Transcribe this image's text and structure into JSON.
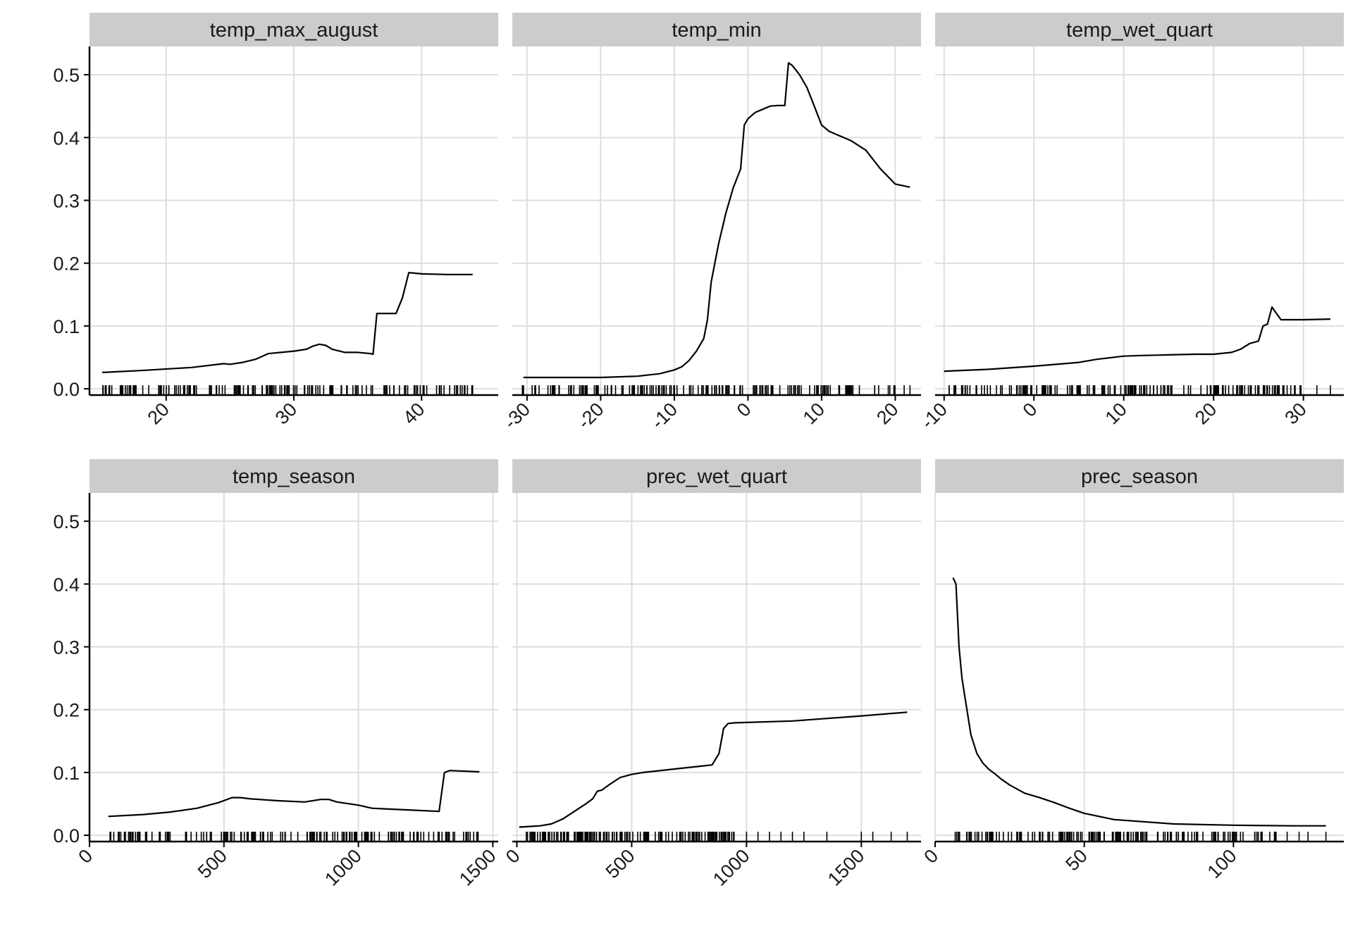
{
  "chart_data": [
    {
      "type": "line",
      "title": "temp_max_august",
      "xlabel": "",
      "ylabel": "",
      "xlim": [
        14,
        46
      ],
      "ylim": [
        -0.01,
        0.545
      ],
      "x_ticks": [
        20,
        30,
        40
      ],
      "x_tick_labels": [
        "20",
        "30",
        "40"
      ],
      "y_ticks": [
        0.0,
        0.1,
        0.2,
        0.3,
        0.4,
        0.5
      ],
      "y_tick_labels": [
        "0.0",
        "0.1",
        "0.2",
        "0.3",
        "0.4",
        "0.5"
      ],
      "grid": true,
      "series": [
        {
          "x": [
            15,
            18,
            22,
            24.5,
            25,
            26,
            27,
            28,
            29,
            30,
            31,
            31.5,
            32,
            32.5,
            33,
            34,
            35,
            36,
            36.2,
            36.5,
            37,
            38,
            38.5,
            39,
            40,
            42,
            44
          ],
          "y": [
            0.026,
            0.029,
            0.034,
            0.04,
            0.039,
            0.042,
            0.047,
            0.056,
            0.058,
            0.06,
            0.063,
            0.068,
            0.071,
            0.069,
            0.063,
            0.058,
            0.058,
            0.056,
            0.055,
            0.12,
            0.12,
            0.12,
            0.145,
            0.185,
            0.183,
            0.182,
            0.182
          ]
        }
      ],
      "rug": {
        "from": 15,
        "to": 44,
        "extra": [
          42.2,
          44.0
        ]
      }
    },
    {
      "type": "line",
      "title": "temp_min",
      "xlabel": "",
      "ylabel": "",
      "xlim": [
        -32,
        23.5
      ],
      "ylim": [
        -0.01,
        0.545
      ],
      "x_ticks": [
        -30,
        -20,
        -10,
        0,
        10,
        20
      ],
      "x_tick_labels": [
        "-30",
        "-20",
        "-10",
        "0",
        "10",
        "20"
      ],
      "y_ticks": [
        0.0,
        0.1,
        0.2,
        0.3,
        0.4,
        0.5
      ],
      "y_tick_labels": [
        "0.0",
        "0.1",
        "0.2",
        "0.3",
        "0.4",
        "0.5"
      ],
      "grid": true,
      "series": [
        {
          "x": [
            -30.5,
            -25,
            -20,
            -15,
            -12,
            -10,
            -9,
            -8,
            -7,
            -6,
            -5.5,
            -5,
            -4,
            -3,
            -2,
            -1,
            -0.5,
            0,
            1,
            2,
            3,
            4,
            5,
            5.5,
            6,
            7,
            8,
            9,
            10,
            11,
            12,
            14,
            16,
            18,
            20,
            22
          ],
          "y": [
            0.018,
            0.018,
            0.018,
            0.02,
            0.024,
            0.03,
            0.035,
            0.045,
            0.06,
            0.08,
            0.11,
            0.17,
            0.23,
            0.28,
            0.32,
            0.35,
            0.42,
            0.43,
            0.44,
            0.445,
            0.45,
            0.451,
            0.451,
            0.519,
            0.515,
            0.5,
            0.48,
            0.45,
            0.42,
            0.41,
            0.405,
            0.395,
            0.38,
            0.35,
            0.326,
            0.321
          ]
        }
      ],
      "rug": {
        "from": -31,
        "to": 21.5,
        "extra": [
          -30.5,
          22.0
        ]
      }
    },
    {
      "type": "line",
      "title": "temp_wet_quart",
      "xlabel": "",
      "ylabel": "",
      "xlim": [
        -11,
        34.5
      ],
      "ylim": [
        -0.01,
        0.545
      ],
      "x_ticks": [
        -10,
        0,
        10,
        20,
        30
      ],
      "x_tick_labels": [
        "-10",
        "0",
        "10",
        "20",
        "30"
      ],
      "y_ticks": [
        0.0,
        0.1,
        0.2,
        0.3,
        0.4,
        0.5
      ],
      "y_tick_labels": [
        "0.0",
        "0.1",
        "0.2",
        "0.3",
        "0.4",
        "0.5"
      ],
      "grid": true,
      "series": [
        {
          "x": [
            -10,
            -5,
            0,
            5,
            7,
            10,
            12,
            15,
            18,
            20,
            22,
            23,
            24,
            25,
            25.5,
            26,
            26.5,
            27,
            27.5,
            28,
            30,
            33
          ],
          "y": [
            0.028,
            0.031,
            0.036,
            0.042,
            0.047,
            0.052,
            0.053,
            0.054,
            0.055,
            0.055,
            0.058,
            0.063,
            0.072,
            0.076,
            0.1,
            0.103,
            0.13,
            0.12,
            0.11,
            0.11,
            0.11,
            0.111
          ]
        }
      ],
      "rug": {
        "from": -9.5,
        "to": 30,
        "extra": [
          31.5,
          33.0
        ]
      }
    },
    {
      "type": "line",
      "title": "temp_season",
      "xlabel": "",
      "ylabel": "",
      "xlim": [
        0,
        1520
      ],
      "ylim": [
        -0.01,
        0.545
      ],
      "x_ticks": [
        0,
        500,
        1000,
        1500
      ],
      "x_tick_labels": [
        "0",
        "500",
        "1000",
        "1500"
      ],
      "y_ticks": [
        0.0,
        0.1,
        0.2,
        0.3,
        0.4,
        0.5
      ],
      "y_tick_labels": [
        "0.0",
        "0.1",
        "0.2",
        "0.3",
        "0.4",
        "0.5"
      ],
      "grid": true,
      "series": [
        {
          "x": [
            70,
            200,
            300,
            400,
            480,
            530,
            560,
            600,
            700,
            800,
            860,
            890,
            920,
            1000,
            1050,
            1100,
            1200,
            1300,
            1320,
            1340,
            1450
          ],
          "y": [
            0.03,
            0.033,
            0.037,
            0.043,
            0.052,
            0.06,
            0.06,
            0.058,
            0.055,
            0.053,
            0.057,
            0.057,
            0.053,
            0.048,
            0.043,
            0.042,
            0.04,
            0.038,
            0.1,
            0.103,
            0.101
          ]
        }
      ],
      "rug": {
        "from": 75,
        "to": 1445,
        "extra": [
          1400,
          1445
        ]
      }
    },
    {
      "type": "line",
      "title": "prec_wet_quart",
      "xlabel": "",
      "ylabel": "",
      "xlim": [
        -20,
        1760
      ],
      "ylim": [
        -0.01,
        0.545
      ],
      "x_ticks": [
        0,
        500,
        1000,
        1500
      ],
      "x_tick_labels": [
        "0",
        "500",
        "1000",
        "1500"
      ],
      "y_ticks": [
        0.0,
        0.1,
        0.2,
        0.3,
        0.4,
        0.5
      ],
      "y_tick_labels": [
        "0.0",
        "0.1",
        "0.2",
        "0.3",
        "0.4",
        "0.5"
      ],
      "grid": true,
      "series": [
        {
          "x": [
            10,
            100,
            150,
            200,
            250,
            300,
            330,
            350,
            370,
            400,
            450,
            500,
            550,
            600,
            700,
            800,
            850,
            880,
            900,
            920,
            950,
            1200,
            1500,
            1700
          ],
          "y": [
            0.013,
            0.015,
            0.018,
            0.026,
            0.038,
            0.05,
            0.058,
            0.07,
            0.072,
            0.08,
            0.092,
            0.097,
            0.1,
            0.102,
            0.106,
            0.11,
            0.112,
            0.13,
            0.17,
            0.178,
            0.179,
            0.182,
            0.19,
            0.196
          ]
        }
      ],
      "rug": {
        "from": 10,
        "to": 950,
        "extra": [
          1000,
          1050,
          1100,
          1150,
          1200,
          1250,
          1350,
          1500,
          1550,
          1630,
          1700
        ]
      }
    },
    {
      "type": "line",
      "title": "prec_season",
      "xlabel": "",
      "ylabel": "",
      "xlim": [
        0,
        137
      ],
      "ylim": [
        -0.01,
        0.545
      ],
      "x_ticks": [
        0,
        50,
        100
      ],
      "x_tick_labels": [
        "0",
        "50",
        "100"
      ],
      "y_ticks": [
        0.0,
        0.1,
        0.2,
        0.3,
        0.4,
        0.5
      ],
      "y_tick_labels": [
        "0.0",
        "0.1",
        "0.2",
        "0.3",
        "0.4",
        "0.5"
      ],
      "grid": true,
      "series": [
        {
          "x": [
            6,
            7,
            8,
            9,
            10,
            12,
            14,
            16,
            18,
            20,
            22,
            25,
            30,
            35,
            40,
            45,
            50,
            60,
            80,
            100,
            120,
            131
          ],
          "y": [
            0.41,
            0.4,
            0.3,
            0.25,
            0.22,
            0.16,
            0.13,
            0.115,
            0.105,
            0.098,
            0.09,
            0.08,
            0.067,
            0.06,
            0.052,
            0.043,
            0.035,
            0.025,
            0.018,
            0.016,
            0.015,
            0.015
          ]
        }
      ],
      "rug": {
        "from": 6.5,
        "to": 115,
        "extra": [
          118,
          122,
          125,
          131
        ]
      }
    }
  ]
}
